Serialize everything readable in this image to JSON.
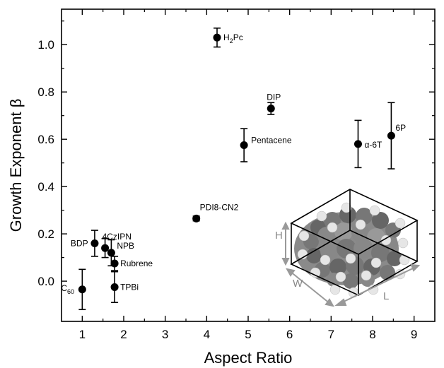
{
  "chart_data": {
    "type": "scatter",
    "xlabel": "Aspect Ratio",
    "ylabel": "Growth Exponent β",
    "xlim": [
      0.5,
      9.5
    ],
    "ylim": [
      -0.17,
      1.15
    ],
    "xticks": [
      "1",
      "2",
      "3",
      "4",
      "5",
      "6",
      "7",
      "8",
      "9"
    ],
    "yticks": [
      "0.0",
      "0.2",
      "0.4",
      "0.6",
      "0.8",
      "1.0"
    ],
    "grid": false,
    "points": [
      {
        "label": "C",
        "sub": "60",
        "x": 1.0,
        "y": -0.035,
        "err": 0.085
      },
      {
        "label": "BDP",
        "x": 1.3,
        "y": 0.16,
        "err": 0.055
      },
      {
        "label": "4CzIPN",
        "x": 1.55,
        "y": 0.14,
        "err": 0.04
      },
      {
        "label": "NPB",
        "x": 1.7,
        "y": 0.12,
        "err": 0.055
      },
      {
        "label": "Rubrene",
        "x": 1.78,
        "y": 0.075,
        "err": 0.03
      },
      {
        "label": "TPBi",
        "x": 1.78,
        "y": -0.025,
        "err": 0.065
      },
      {
        "label": "PDI8-CN2",
        "x": 3.75,
        "y": 0.265,
        "err": 0.01
      },
      {
        "label": "H",
        "sub": "2",
        "suffix": "Pc",
        "x": 4.25,
        "y": 1.03,
        "err": 0.04
      },
      {
        "label": "Pentacene",
        "x": 4.9,
        "y": 0.575,
        "err": 0.07
      },
      {
        "label": "DIP",
        "x": 5.55,
        "y": 0.73,
        "err": 0.025
      },
      {
        "label": "α-6T",
        "x": 7.65,
        "y": 0.58,
        "err": 0.1
      },
      {
        "label": "6P",
        "x": 8.45,
        "y": 0.615,
        "err": 0.14
      }
    ],
    "inset": {
      "labels": {
        "height": "H",
        "width": "W",
        "length": "L"
      }
    }
  }
}
